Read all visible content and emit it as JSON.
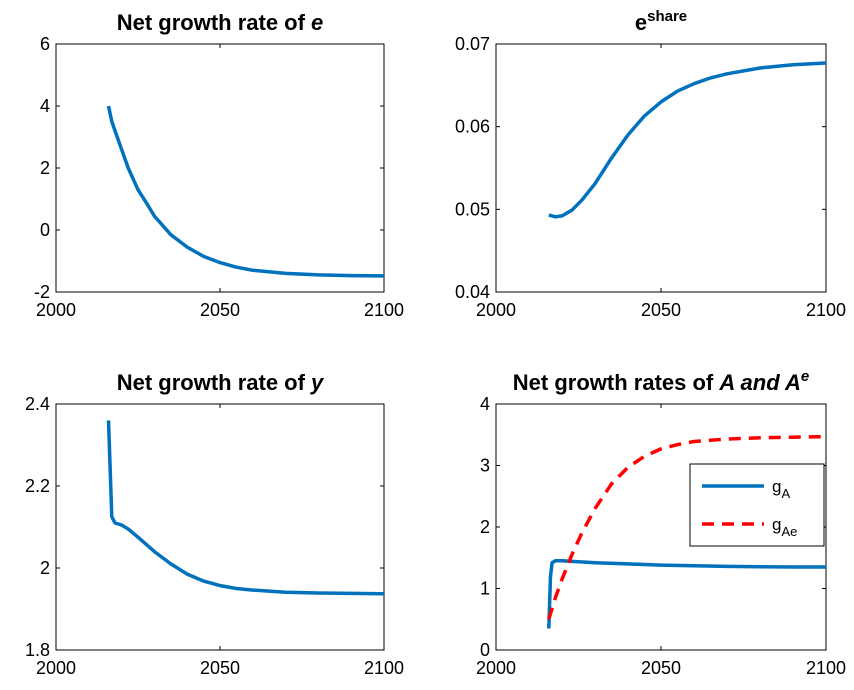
{
  "chart_data": [
    {
      "type": "line",
      "title_parts": [
        {
          "text": "Net growth rate of ",
          "italic": false
        },
        {
          "text": "e",
          "italic": true
        }
      ],
      "xlim": [
        2000,
        2100
      ],
      "ylim": [
        -2,
        6
      ],
      "x_ticks": [
        "2000",
        "2050",
        "2100"
      ],
      "y_ticks": [
        "-2",
        "0",
        "2",
        "4",
        "6"
      ],
      "grid": false,
      "series": [
        {
          "color": "#0072BD",
          "dashed": false,
          "x": [
            2016,
            2017,
            2018,
            2020,
            2022,
            2025,
            2028,
            2030,
            2035,
            2040,
            2045,
            2050,
            2055,
            2060,
            2070,
            2080,
            2090,
            2100
          ],
          "y": [
            4.0,
            3.5,
            3.2,
            2.6,
            2.0,
            1.3,
            0.8,
            0.45,
            -0.15,
            -0.55,
            -0.85,
            -1.05,
            -1.2,
            -1.3,
            -1.4,
            -1.45,
            -1.47,
            -1.48
          ]
        }
      ]
    },
    {
      "type": "line",
      "title_parts": [
        {
          "text": "e",
          "italic": false
        },
        {
          "text": "share",
          "italic": false,
          "sup": true
        }
      ],
      "xlim": [
        2000,
        2100
      ],
      "ylim": [
        0.04,
        0.07
      ],
      "x_ticks": [
        "2000",
        "2050",
        "2100"
      ],
      "y_ticks": [
        "0.04",
        "0.05",
        "0.06",
        "0.07"
      ],
      "grid": false,
      "series": [
        {
          "color": "#0072BD",
          "dashed": false,
          "x": [
            2016,
            2018,
            2020,
            2023,
            2026,
            2030,
            2035,
            2040,
            2045,
            2050,
            2055,
            2060,
            2065,
            2070,
            2080,
            2090,
            2100
          ],
          "y": [
            0.0493,
            0.0491,
            0.0492,
            0.0499,
            0.0511,
            0.0531,
            0.0562,
            0.059,
            0.0613,
            0.063,
            0.0643,
            0.0652,
            0.0659,
            0.0664,
            0.0671,
            0.0675,
            0.0677
          ]
        }
      ]
    },
    {
      "type": "line",
      "title_parts": [
        {
          "text": "Net growth rate of ",
          "italic": false
        },
        {
          "text": "y",
          "italic": true
        }
      ],
      "xlim": [
        2000,
        2100
      ],
      "ylim": [
        1.8,
        2.4
      ],
      "x_ticks": [
        "2000",
        "2050",
        "2100"
      ],
      "y_ticks": [
        "1.8",
        "2",
        "2.2",
        "2.4"
      ],
      "grid": false,
      "series": [
        {
          "color": "#0072BD",
          "dashed": false,
          "x": [
            2016,
            2017,
            2018,
            2020,
            2022,
            2025,
            2030,
            2035,
            2040,
            2045,
            2050,
            2055,
            2060,
            2070,
            2080,
            2090,
            2100
          ],
          "y": [
            2.36,
            2.125,
            2.11,
            2.105,
            2.095,
            2.075,
            2.04,
            2.01,
            1.985,
            1.968,
            1.957,
            1.95,
            1.946,
            1.941,
            1.939,
            1.938,
            1.937
          ]
        }
      ]
    },
    {
      "type": "line",
      "title_parts": [
        {
          "text": "Net growth rates of ",
          "italic": false
        },
        {
          "text": "A and A",
          "italic": true
        },
        {
          "text": "e",
          "italic": true,
          "sup": true
        }
      ],
      "xlim": [
        2000,
        2100
      ],
      "ylim": [
        0,
        4
      ],
      "x_ticks": [
        "2000",
        "2050",
        "2100"
      ],
      "y_ticks": [
        "0",
        "1",
        "2",
        "3",
        "4"
      ],
      "grid": false,
      "legend": {
        "placement": "right",
        "entries": [
          {
            "label": "g",
            "sub": "A"
          },
          {
            "label": "g",
            "sub": "Ae"
          }
        ]
      },
      "series": [
        {
          "color": "#0072BD",
          "dashed": false,
          "x": [
            2016,
            2016.5,
            2017,
            2018,
            2020,
            2030,
            2040,
            2050,
            2060,
            2070,
            2080,
            2090,
            2100
          ],
          "y": [
            0.35,
            1.2,
            1.42,
            1.45,
            1.45,
            1.42,
            1.4,
            1.38,
            1.37,
            1.36,
            1.355,
            1.35,
            1.35
          ]
        },
        {
          "color": "#FF0000",
          "dashed": true,
          "x": [
            2016,
            2018,
            2020,
            2023,
            2026,
            2030,
            2035,
            2040,
            2045,
            2050,
            2055,
            2060,
            2070,
            2080,
            2090,
            2100
          ],
          "y": [
            0.5,
            0.85,
            1.15,
            1.55,
            1.9,
            2.3,
            2.7,
            2.97,
            3.15,
            3.27,
            3.34,
            3.39,
            3.43,
            3.45,
            3.46,
            3.47
          ]
        }
      ]
    }
  ]
}
